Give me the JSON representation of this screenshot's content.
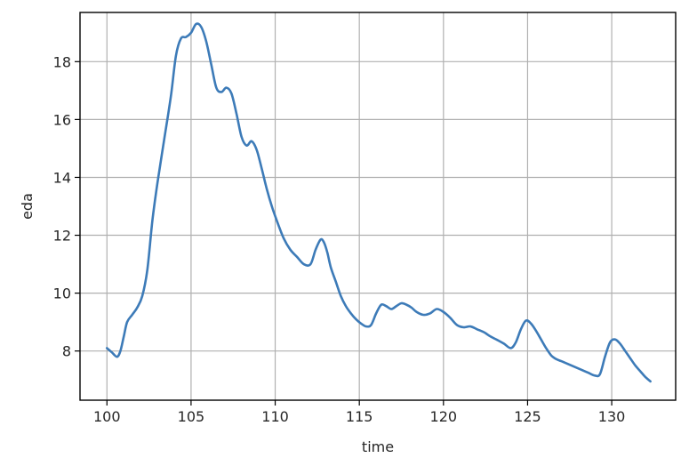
{
  "chart_data": {
    "type": "line",
    "title": "",
    "xlabel": "time",
    "ylabel": "eda",
    "xlim": [
      98.4,
      133.8
    ],
    "ylim": [
      6.3,
      19.7
    ],
    "xticks": [
      100,
      105,
      110,
      115,
      120,
      125,
      130
    ],
    "xtick_labels": [
      "100",
      "105",
      "110",
      "115",
      "120",
      "125",
      "130"
    ],
    "yticks": [
      8,
      10,
      12,
      14,
      16,
      18
    ],
    "ytick_labels": [
      "8",
      "10",
      "12",
      "14",
      "16",
      "18"
    ],
    "grid": true,
    "legend": "none",
    "series": [
      {
        "color": "#3d7bb8",
        "x": [
          100.0,
          100.3,
          100.6,
          100.8,
          101.0,
          101.2,
          101.5,
          101.8,
          102.1,
          102.4,
          102.7,
          103.0,
          103.4,
          103.8,
          104.1,
          104.4,
          104.7,
          105.0,
          105.3,
          105.6,
          105.9,
          106.2,
          106.5,
          106.8,
          107.1,
          107.4,
          107.7,
          108.0,
          108.3,
          108.6,
          108.9,
          109.2,
          109.5,
          109.8,
          110.1,
          110.5,
          110.9,
          111.3,
          111.7,
          112.1,
          112.4,
          112.7,
          112.9,
          113.1,
          113.3,
          113.6,
          113.9,
          114.2,
          114.5,
          114.8,
          115.1,
          115.4,
          115.7,
          116.0,
          116.3,
          116.6,
          116.9,
          117.2,
          117.5,
          117.8,
          118.1,
          118.4,
          118.8,
          119.2,
          119.6,
          120.0,
          120.4,
          120.8,
          121.2,
          121.6,
          122.0,
          122.4,
          122.8,
          123.2,
          123.6,
          124.0,
          124.3,
          124.6,
          124.9,
          125.2,
          125.5,
          125.8,
          126.1,
          126.4,
          126.7,
          127.0,
          127.4,
          127.8,
          128.2,
          128.6,
          129.0,
          129.3,
          129.6,
          129.9,
          130.2,
          130.5,
          130.8,
          131.1,
          131.4,
          131.7,
          132.0,
          132.3
        ],
        "y": [
          8.1,
          7.95,
          7.8,
          8.0,
          8.5,
          9.0,
          9.25,
          9.5,
          9.9,
          10.8,
          12.5,
          13.8,
          15.3,
          16.8,
          18.2,
          18.8,
          18.85,
          19.0,
          19.3,
          19.2,
          18.7,
          17.9,
          17.1,
          16.95,
          17.1,
          16.9,
          16.2,
          15.4,
          15.1,
          15.25,
          14.95,
          14.3,
          13.6,
          13.0,
          12.5,
          11.9,
          11.5,
          11.25,
          11.0,
          11.0,
          11.5,
          11.85,
          11.75,
          11.4,
          10.9,
          10.4,
          9.9,
          9.55,
          9.3,
          9.1,
          8.95,
          8.85,
          8.9,
          9.3,
          9.6,
          9.55,
          9.45,
          9.55,
          9.65,
          9.6,
          9.5,
          9.35,
          9.25,
          9.3,
          9.45,
          9.35,
          9.15,
          8.9,
          8.82,
          8.85,
          8.75,
          8.65,
          8.5,
          8.38,
          8.25,
          8.1,
          8.3,
          8.75,
          9.05,
          8.95,
          8.7,
          8.4,
          8.1,
          7.85,
          7.72,
          7.65,
          7.55,
          7.45,
          7.35,
          7.25,
          7.15,
          7.2,
          7.8,
          8.3,
          8.4,
          8.25,
          8.0,
          7.75,
          7.5,
          7.3,
          7.1,
          6.95
        ]
      }
    ]
  }
}
